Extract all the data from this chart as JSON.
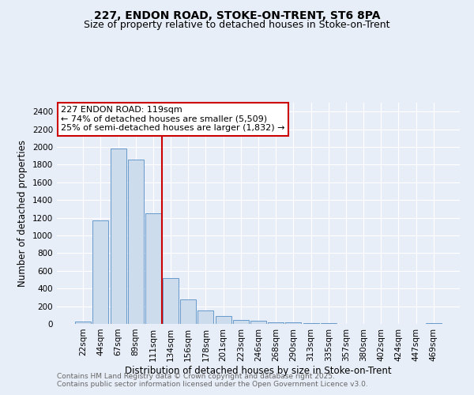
{
  "title_line1": "227, ENDON ROAD, STOKE-ON-TRENT, ST6 8PA",
  "title_line2": "Size of property relative to detached houses in Stoke-on-Trent",
  "xlabel": "Distribution of detached houses by size in Stoke-on-Trent",
  "ylabel": "Number of detached properties",
  "categories": [
    "22sqm",
    "44sqm",
    "67sqm",
    "89sqm",
    "111sqm",
    "134sqm",
    "156sqm",
    "178sqm",
    "201sqm",
    "223sqm",
    "246sqm",
    "268sqm",
    "290sqm",
    "313sqm",
    "335sqm",
    "357sqm",
    "380sqm",
    "402sqm",
    "424sqm",
    "447sqm",
    "469sqm"
  ],
  "values": [
    25,
    1170,
    1980,
    1860,
    1250,
    520,
    275,
    150,
    90,
    45,
    40,
    18,
    15,
    8,
    5,
    3,
    2,
    2,
    1,
    1,
    5
  ],
  "bar_color": "#cddcec",
  "bar_edge_color": "#6699cc",
  "vline_x": 4.5,
  "vline_color": "#cc0000",
  "annotation_text": "227 ENDON ROAD: 119sqm\n← 74% of detached houses are smaller (5,509)\n25% of semi-detached houses are larger (1,832) →",
  "annotation_box_color": "#ffffff",
  "annotation_box_edge": "#cc0000",
  "ylim": [
    0,
    2500
  ],
  "yticks": [
    0,
    200,
    400,
    600,
    800,
    1000,
    1200,
    1400,
    1600,
    1800,
    2000,
    2200,
    2400
  ],
  "bg_color": "#e8eef8",
  "footer_line1": "Contains HM Land Registry data © Crown copyright and database right 2025.",
  "footer_line2": "Contains public sector information licensed under the Open Government Licence v3.0.",
  "grid_color": "#ffffff",
  "title_fontsize": 10,
  "subtitle_fontsize": 9,
  "axis_label_fontsize": 8.5,
  "tick_fontsize": 7.5,
  "annotation_fontsize": 8,
  "footer_fontsize": 6.5
}
